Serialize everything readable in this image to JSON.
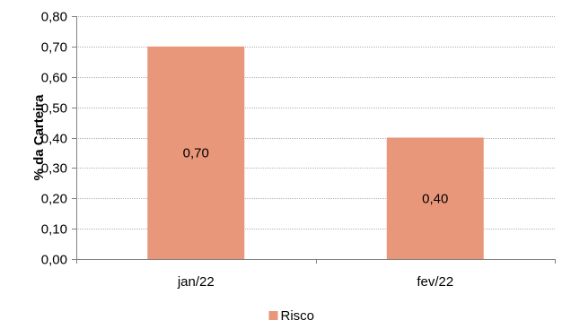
{
  "chart_data": {
    "type": "bar",
    "categories": [
      "jan/22",
      "fev/22"
    ],
    "series": [
      {
        "name": "Risco",
        "values": [
          0.7,
          0.4
        ],
        "value_labels": [
          "0,70",
          "0,40"
        ],
        "color": "#E9977A"
      }
    ],
    "title": "",
    "xlabel": "",
    "ylabel": "% da Carteira",
    "ylim": [
      0,
      0.8
    ],
    "yticks": [
      0,
      0.1,
      0.2,
      0.3,
      0.4,
      0.5,
      0.6,
      0.7,
      0.8
    ],
    "ytick_labels": [
      "0,00",
      "0,10",
      "0,20",
      "0,30",
      "0,40",
      "0,50",
      "0,60",
      "0,70",
      "0,80"
    ],
    "grid": true,
    "legend_position": "bottom"
  }
}
